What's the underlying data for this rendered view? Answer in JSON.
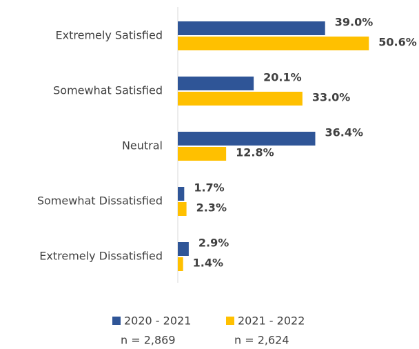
{
  "chart_data": {
    "type": "hbar",
    "categories": [
      "Extremely Satisfied",
      "Somewhat Satisfied",
      "Neutral",
      "Somewhat Dissatisfied",
      "Extremely Dissatisfied"
    ],
    "series": [
      {
        "name": "2020 - 2021",
        "sample": "n = 2,869",
        "color": "#2f5597",
        "values": [
          39.0,
          20.1,
          36.4,
          1.7,
          2.9
        ],
        "value_labels": [
          "39.0%",
          "20.1%",
          "36.4%",
          "1.7%",
          "2.9%"
        ]
      },
      {
        "name": "2021 - 2022",
        "sample": "n = 2,624",
        "color": "#ffc000",
        "values": [
          50.6,
          33.0,
          12.8,
          2.3,
          1.4
        ],
        "value_labels": [
          "50.6%",
          "33.0%",
          "12.8%",
          "2.3%",
          "1.4%"
        ]
      }
    ],
    "legend": "bottom"
  }
}
